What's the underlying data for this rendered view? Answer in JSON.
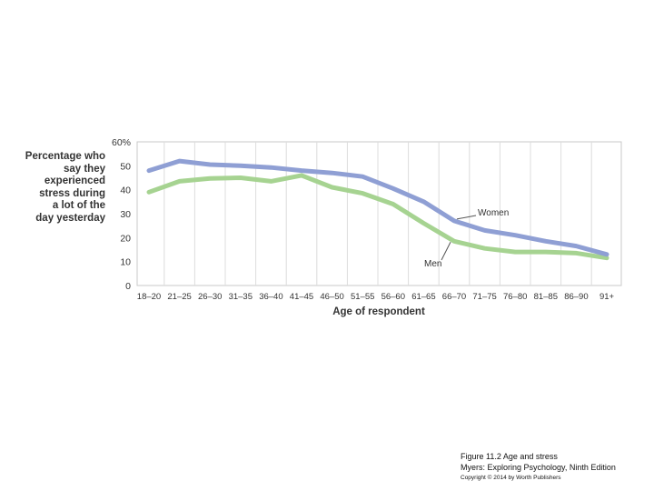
{
  "chart_data": {
    "type": "line",
    "ylabel_lines": [
      "Percentage who",
      "say they",
      "experienced",
      "stress during",
      "a lot of the",
      "day yesterday"
    ],
    "xlabel": "Age of respondent",
    "ylim": [
      0,
      60
    ],
    "yticks": [
      "0",
      "10",
      "20",
      "30",
      "40",
      "50",
      "60%"
    ],
    "ytick_values": [
      0,
      10,
      20,
      30,
      40,
      50,
      60
    ],
    "grid": true,
    "categories": [
      "18–20",
      "21–25",
      "26–30",
      "31–35",
      "36–40",
      "41–45",
      "46–50",
      "51–55",
      "56–60",
      "61–65",
      "66–70",
      "71–75",
      "76–80",
      "81–85",
      "86–90",
      "91+"
    ],
    "series": [
      {
        "name": "Women",
        "color": "#8f9fd4",
        "values": [
          48,
          52,
          50.5,
          50,
          49.3,
          48,
          47,
          45.5,
          40.5,
          35,
          27,
          23,
          21,
          18.5,
          16.5,
          13
        ]
      },
      {
        "name": "Men",
        "color": "#a6d391",
        "values": [
          39,
          43.5,
          44.7,
          45,
          43.5,
          46,
          41,
          38.5,
          34,
          26,
          18.5,
          15.5,
          14,
          14,
          13.5,
          11.5
        ]
      }
    ]
  },
  "caption": {
    "line1": "Figure 11.2 Age and stress",
    "line2": "Myers: Exploring Psychology, Ninth Edition",
    "line3": "Copyright © 2014 by Worth Publishers"
  }
}
